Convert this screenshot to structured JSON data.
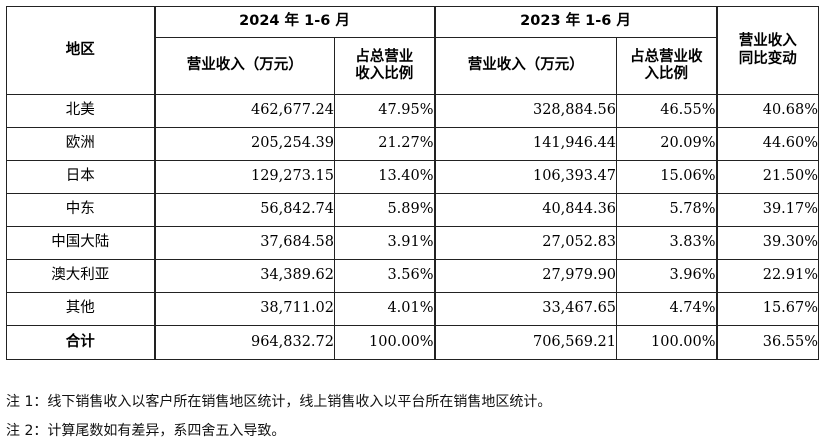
{
  "table": {
    "headers": {
      "region": "地区",
      "year_2024": "2024 年 1-6 月",
      "year_2023": "2023 年 1-6 月",
      "revenue": "营业收入（万元）",
      "share_line1": "占总营业",
      "share_line2": "收入比例",
      "share_2023_line1": "占总营业收",
      "share_2023_line2": "入比例",
      "yoy_line1": "营业收入",
      "yoy_line2": "同比变动"
    },
    "rows": [
      {
        "region": "北美",
        "rev_2024": "462,677.24",
        "share_2024": "47.95%",
        "rev_2023": "328,884.56",
        "share_2023": "46.55%",
        "yoy": "40.68%"
      },
      {
        "region": "欧洲",
        "rev_2024": "205,254.39",
        "share_2024": "21.27%",
        "rev_2023": "141,946.44",
        "share_2023": "20.09%",
        "yoy": "44.60%"
      },
      {
        "region": "日本",
        "rev_2024": "129,273.15",
        "share_2024": "13.40%",
        "rev_2023": "106,393.47",
        "share_2023": "15.06%",
        "yoy": "21.50%"
      },
      {
        "region": "中东",
        "rev_2024": "56,842.74",
        "share_2024": "5.89%",
        "rev_2023": "40,844.36",
        "share_2023": "5.78%",
        "yoy": "39.17%"
      },
      {
        "region": "中国大陆",
        "rev_2024": "37,684.58",
        "share_2024": "3.91%",
        "rev_2023": "27,052.83",
        "share_2023": "3.83%",
        "yoy": "39.30%"
      },
      {
        "region": "澳大利亚",
        "rev_2024": "34,389.62",
        "share_2024": "3.56%",
        "rev_2023": "27,979.90",
        "share_2023": "3.96%",
        "yoy": "22.91%"
      },
      {
        "region": "其他",
        "rev_2024": "38,711.02",
        "share_2024": "4.01%",
        "rev_2023": "33,467.65",
        "share_2023": "4.74%",
        "yoy": "15.67%"
      }
    ],
    "total": {
      "region": "合计",
      "rev_2024": "964,832.72",
      "share_2024": "100.00%",
      "rev_2023": "706,569.21",
      "share_2023": "100.00%",
      "yoy": "36.55%"
    }
  },
  "notes": {
    "note1": "注 1：线下销售收入以客户所在销售地区统计，线上销售收入以平台所在销售地区统计。",
    "note2": "注 2：计算尾数如有差异，系四舍五入导致。"
  }
}
